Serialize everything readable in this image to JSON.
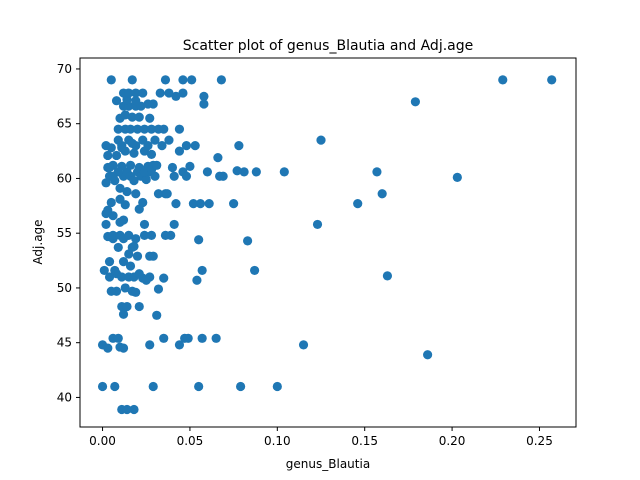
{
  "chart_data": {
    "type": "scatter",
    "title": "Scatter plot of genus_Blautia and Adj.age",
    "xlabel": "genus_Blautia",
    "ylabel": "Adj.age",
    "xlim": [
      -0.0129,
      0.2709
    ],
    "ylim": [
      37.3,
      71.0
    ],
    "xticks": [
      "0.00",
      "0.05",
      "0.10",
      "0.15",
      "0.20",
      "0.25"
    ],
    "xtick_values": [
      0.0,
      0.05,
      0.1,
      0.15,
      0.2,
      0.25
    ],
    "yticks": [
      "40",
      "45",
      "50",
      "55",
      "60",
      "65",
      "70"
    ],
    "ytick_values": [
      40,
      45,
      50,
      55,
      60,
      65,
      70
    ],
    "grid": false,
    "marker_color": "#1f77b4",
    "series": [
      {
        "points": [
          [
            0.229,
            69.0
          ],
          [
            0.257,
            69.0
          ],
          [
            0.179,
            67.0
          ],
          [
            0.125,
            63.5
          ],
          [
            0.203,
            60.1
          ],
          [
            0.16,
            58.6
          ],
          [
            0.157,
            60.6
          ],
          [
            0.146,
            57.7
          ],
          [
            0.163,
            51.1
          ],
          [
            0.123,
            55.8
          ],
          [
            0.115,
            44.8
          ],
          [
            0.186,
            43.9
          ],
          [
            0.104,
            60.6
          ],
          [
            0.1,
            41.0
          ],
          [
            0.087,
            51.6
          ],
          [
            0.083,
            54.3
          ],
          [
            0.088,
            60.6
          ],
          [
            0.081,
            60.6
          ],
          [
            0.078,
            63.0
          ],
          [
            0.077,
            60.7
          ],
          [
            0.075,
            57.7
          ],
          [
            0.079,
            41.0
          ],
          [
            0.068,
            69.0
          ],
          [
            0.058,
            67.5
          ],
          [
            0.058,
            66.8
          ],
          [
            0.066,
            61.9
          ],
          [
            0.067,
            60.2
          ],
          [
            0.069,
            60.2
          ],
          [
            0.06,
            60.6
          ],
          [
            0.061,
            57.7
          ],
          [
            0.056,
            57.7
          ],
          [
            0.052,
            57.7
          ],
          [
            0.055,
            54.4
          ],
          [
            0.057,
            51.6
          ],
          [
            0.054,
            50.7
          ],
          [
            0.057,
            45.4
          ],
          [
            0.065,
            45.4
          ],
          [
            0.055,
            41.0
          ],
          [
            0.051,
            69.0
          ],
          [
            0.046,
            69.0
          ],
          [
            0.036,
            69.0
          ],
          [
            0.046,
            67.8
          ],
          [
            0.042,
            67.5
          ],
          [
            0.038,
            67.8
          ],
          [
            0.033,
            67.8
          ],
          [
            0.044,
            64.5
          ],
          [
            0.038,
            63.5
          ],
          [
            0.048,
            63.0
          ],
          [
            0.053,
            63.0
          ],
          [
            0.044,
            62.5
          ],
          [
            0.04,
            61.0
          ],
          [
            0.046,
            60.6
          ],
          [
            0.048,
            60.2
          ],
          [
            0.05,
            61.1
          ],
          [
            0.041,
            60.2
          ],
          [
            0.042,
            57.7
          ],
          [
            0.036,
            58.6
          ],
          [
            0.041,
            55.8
          ],
          [
            0.039,
            54.8
          ],
          [
            0.036,
            54.8
          ],
          [
            0.035,
            50.9
          ],
          [
            0.032,
            49.9
          ],
          [
            0.031,
            47.5
          ],
          [
            0.035,
            45.4
          ],
          [
            0.047,
            45.4
          ],
          [
            0.049,
            45.4
          ],
          [
            0.044,
            44.8
          ],
          [
            0.029,
            41.0
          ],
          [
            0.027,
            44.8
          ],
          [
            0.018,
            38.9
          ],
          [
            0.011,
            38.9
          ],
          [
            0.014,
            38.9
          ],
          [
            0.007,
            41.0
          ],
          [
            0.0,
            41.0
          ],
          [
            0.0,
            44.8
          ],
          [
            0.003,
            44.5
          ],
          [
            0.006,
            45.4
          ],
          [
            0.009,
            45.4
          ],
          [
            0.01,
            44.6
          ],
          [
            0.012,
            44.5
          ],
          [
            0.021,
            48.3
          ],
          [
            0.011,
            48.3
          ],
          [
            0.014,
            48.3
          ],
          [
            0.012,
            47.6
          ],
          [
            0.008,
            49.7
          ],
          [
            0.005,
            49.7
          ],
          [
            0.013,
            50.0
          ],
          [
            0.017,
            49.7
          ],
          [
            0.001,
            51.6
          ],
          [
            0.004,
            51.0
          ],
          [
            0.008,
            51.3
          ],
          [
            0.011,
            51.0
          ],
          [
            0.015,
            51.0
          ],
          [
            0.018,
            51.0
          ],
          [
            0.023,
            50.9
          ],
          [
            0.027,
            51.0
          ],
          [
            0.021,
            51.3
          ],
          [
            0.012,
            52.4
          ],
          [
            0.016,
            52.0
          ],
          [
            0.02,
            52.9
          ],
          [
            0.027,
            52.9
          ],
          [
            0.029,
            52.9
          ],
          [
            0.017,
            53.7
          ],
          [
            0.009,
            53.7
          ],
          [
            0.006,
            54.5
          ],
          [
            0.003,
            54.7
          ],
          [
            0.006,
            54.8
          ],
          [
            0.01,
            54.8
          ],
          [
            0.012,
            54.5
          ],
          [
            0.015,
            54.8
          ],
          [
            0.019,
            54.5
          ],
          [
            0.024,
            54.8
          ],
          [
            0.028,
            54.8
          ],
          [
            0.018,
            53.8
          ],
          [
            0.01,
            56.0
          ],
          [
            0.012,
            56.2
          ],
          [
            0.024,
            55.8
          ],
          [
            0.006,
            56.6
          ],
          [
            0.002,
            56.8
          ],
          [
            0.003,
            57.1
          ],
          [
            0.005,
            57.8
          ],
          [
            0.01,
            58.1
          ],
          [
            0.014,
            58.8
          ],
          [
            0.019,
            58.6
          ],
          [
            0.023,
            57.8
          ],
          [
            0.021,
            57.2
          ],
          [
            0.032,
            58.6
          ],
          [
            0.037,
            58.6
          ],
          [
            0.002,
            59.6
          ],
          [
            0.004,
            60.2
          ],
          [
            0.007,
            59.8
          ],
          [
            0.009,
            60.6
          ],
          [
            0.012,
            60.2
          ],
          [
            0.014,
            60.6
          ],
          [
            0.016,
            60.2
          ],
          [
            0.018,
            59.8
          ],
          [
            0.02,
            60.6
          ],
          [
            0.022,
            60.2
          ],
          [
            0.025,
            59.9
          ],
          [
            0.027,
            60.6
          ],
          [
            0.03,
            60.2
          ],
          [
            0.003,
            61.0
          ],
          [
            0.006,
            61.2
          ],
          [
            0.011,
            61.1
          ],
          [
            0.016,
            61.2
          ],
          [
            0.021,
            61.0
          ],
          [
            0.026,
            61.1
          ],
          [
            0.029,
            61.2
          ],
          [
            0.003,
            62.1
          ],
          [
            0.008,
            62.1
          ],
          [
            0.013,
            62.5
          ],
          [
            0.018,
            62.3
          ],
          [
            0.024,
            62.5
          ],
          [
            0.028,
            62.2
          ],
          [
            0.002,
            63.0
          ],
          [
            0.005,
            62.8
          ],
          [
            0.009,
            63.5
          ],
          [
            0.011,
            63.0
          ],
          [
            0.015,
            63.5
          ],
          [
            0.019,
            63.0
          ],
          [
            0.023,
            63.5
          ],
          [
            0.026,
            63.0
          ],
          [
            0.03,
            63.5
          ],
          [
            0.034,
            63.0
          ],
          [
            0.009,
            64.5
          ],
          [
            0.013,
            64.5
          ],
          [
            0.016,
            64.5
          ],
          [
            0.02,
            64.5
          ],
          [
            0.024,
            64.5
          ],
          [
            0.028,
            64.5
          ],
          [
            0.032,
            64.5
          ],
          [
            0.035,
            64.5
          ],
          [
            0.01,
            65.5
          ],
          [
            0.013,
            65.8
          ],
          [
            0.017,
            65.6
          ],
          [
            0.021,
            65.6
          ],
          [
            0.027,
            65.5
          ],
          [
            0.012,
            66.6
          ],
          [
            0.015,
            66.6
          ],
          [
            0.019,
            66.6
          ],
          [
            0.022,
            66.6
          ],
          [
            0.026,
            66.8
          ],
          [
            0.029,
            66.8
          ],
          [
            0.008,
            67.1
          ],
          [
            0.014,
            67.2
          ],
          [
            0.019,
            67.1
          ],
          [
            0.012,
            67.8
          ],
          [
            0.015,
            67.8
          ],
          [
            0.019,
            67.8
          ],
          [
            0.023,
            67.8
          ],
          [
            0.005,
            69.0
          ],
          [
            0.017,
            69.0
          ],
          [
            0.009,
            60.6
          ],
          [
            0.01,
            59.1
          ],
          [
            0.002,
            55.8
          ],
          [
            0.004,
            52.4
          ],
          [
            0.015,
            53.1
          ],
          [
            0.007,
            51.6
          ],
          [
            0.025,
            50.7
          ],
          [
            0.019,
            49.6
          ],
          [
            0.013,
            57.6
          ],
          [
            0.004,
            61.0
          ],
          [
            0.006,
            60.2
          ],
          [
            0.024,
            60.6
          ],
          [
            0.028,
            60.8
          ],
          [
            0.031,
            61.2
          ],
          [
            0.011,
            62.8
          ],
          [
            0.017,
            63.2
          ]
        ]
      }
    ]
  }
}
